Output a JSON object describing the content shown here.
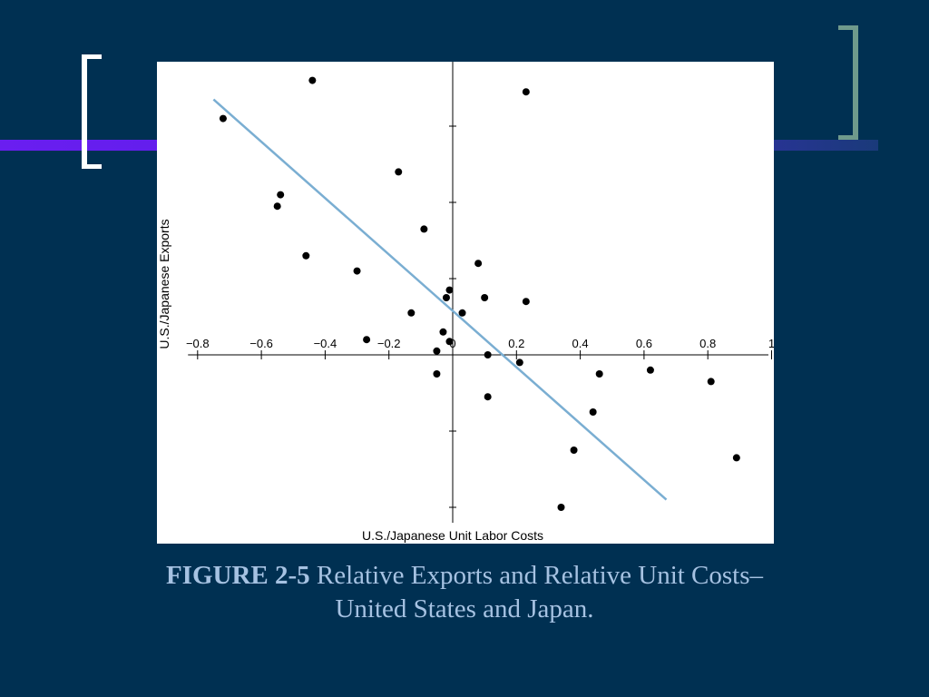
{
  "slide": {
    "figure_label": "FIGURE 2-5",
    "figure_title_line1": "Relative Exports and Relative Unit Costs–",
    "figure_title_line2": "United States and Japan.",
    "colors": {
      "background": "#003052",
      "accent_bar": "#5a1ee8",
      "left_bracket": "#ffffff",
      "right_bracket": "#6f9a8c",
      "caption_text": "#a6c2e2",
      "regression_line": "#7aaed2"
    }
  },
  "chart_data": {
    "type": "scatter",
    "title": "",
    "xlabel": "U.S./Japanese Unit Labor Costs",
    "ylabel": "U.S./Japanese Exports",
    "xlim": [
      -0.85,
      1.0
    ],
    "ylim": [
      -1.0,
      1.0
    ],
    "x_ticks": [
      -0.8,
      -0.6,
      -0.4,
      -0.2,
      0,
      0.2,
      0.4,
      0.6,
      0.8,
      1
    ],
    "x_tick_labels": [
      "−0.8",
      "−0.6",
      "−0.4",
      "−0.2",
      "0",
      "0.2",
      "0.4",
      "0.6",
      "0.8",
      "1"
    ],
    "y_ticks": [
      -0.8,
      -0.6,
      -0.4,
      -0.2,
      0.2,
      0.4,
      0.6,
      0.8
    ],
    "y_tick_labels_shown": false,
    "grid": false,
    "legend": "none",
    "points": [
      {
        "x": -0.72,
        "y": 0.62
      },
      {
        "x": -0.44,
        "y": 0.72
      },
      {
        "x": 0.23,
        "y": 0.69
      },
      {
        "x": -0.17,
        "y": 0.48
      },
      {
        "x": -0.55,
        "y": 0.39
      },
      {
        "x": -0.54,
        "y": 0.42
      },
      {
        "x": -0.09,
        "y": 0.33
      },
      {
        "x": -0.46,
        "y": 0.26
      },
      {
        "x": -0.3,
        "y": 0.22
      },
      {
        "x": 0.08,
        "y": 0.24
      },
      {
        "x": -0.01,
        "y": 0.17
      },
      {
        "x": -0.02,
        "y": 0.15
      },
      {
        "x": 0.1,
        "y": 0.15
      },
      {
        "x": 0.23,
        "y": 0.14
      },
      {
        "x": 0.03,
        "y": 0.11
      },
      {
        "x": -0.13,
        "y": 0.11
      },
      {
        "x": -0.03,
        "y": 0.06
      },
      {
        "x": -0.01,
        "y": 0.035
      },
      {
        "x": -0.27,
        "y": 0.04
      },
      {
        "x": -0.05,
        "y": 0.01
      },
      {
        "x": 0.11,
        "y": 0.0
      },
      {
        "x": 0.21,
        "y": -0.02
      },
      {
        "x": -0.05,
        "y": -0.05
      },
      {
        "x": 0.46,
        "y": -0.05
      },
      {
        "x": 0.62,
        "y": -0.04
      },
      {
        "x": 0.81,
        "y": -0.07
      },
      {
        "x": 0.11,
        "y": -0.11
      },
      {
        "x": 0.44,
        "y": -0.15
      },
      {
        "x": 0.38,
        "y": -0.25
      },
      {
        "x": 0.89,
        "y": -0.27
      },
      {
        "x": 0.34,
        "y": -0.4
      }
    ],
    "fit_line": {
      "x": [
        -0.75,
        0.67
      ],
      "y": [
        0.67,
        -0.38
      ]
    }
  }
}
